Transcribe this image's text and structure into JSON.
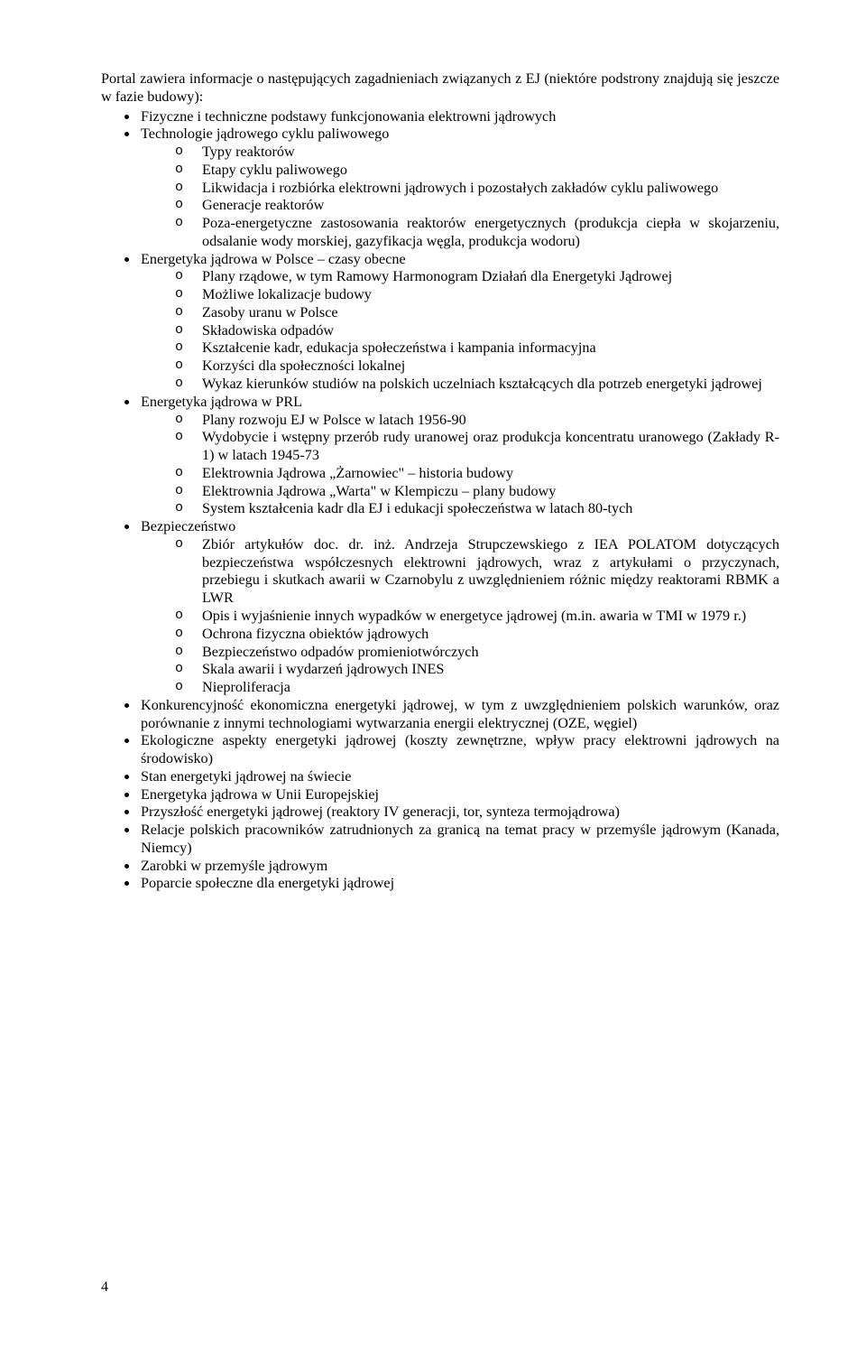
{
  "intro": "Portal zawiera informacje o następujących zagadnieniach związanych z EJ (niektóre podstrony znajdują się jeszcze w fazie budowy):",
  "page_number": "4",
  "items": [
    {
      "text": "Fizyczne i techniczne podstawy funkcjonowania elektrowni jądrowych"
    },
    {
      "text": "Technologie jądrowego cyklu paliwowego",
      "sub": [
        "Typy reaktorów",
        "Etapy cyklu paliwowego",
        "Likwidacja i rozbiórka elektrowni jądrowych i pozostałych zakładów cyklu paliwowego",
        "Generacje reaktorów",
        "Poza-energetyczne zastosowania reaktorów energetycznych (produkcja ciepła w skojarzeniu, odsalanie wody morskiej, gazyfikacja węgla, produkcja wodoru)"
      ]
    },
    {
      "text": "Energetyka jądrowa w Polsce – czasy obecne",
      "sub": [
        "Plany rządowe, w tym Ramowy Harmonogram Działań dla Energetyki Jądrowej",
        "Możliwe lokalizacje budowy",
        "Zasoby uranu w Polsce",
        "Składowiska odpadów",
        "Kształcenie kadr, edukacja społeczeństwa i kampania informacyjna",
        "Korzyści dla społeczności lokalnej",
        "Wykaz kierunków studiów na polskich uczelniach kształcących dla potrzeb energetyki jądrowej"
      ]
    },
    {
      "text": "Energetyka jądrowa w PRL",
      "sub": [
        "Plany rozwoju EJ w Polsce w latach 1956-90",
        "Wydobycie i wstępny przerób rudy uranowej oraz produkcja koncentratu uranowego (Zakłady R-1) w latach 1945-73",
        "Elektrownia Jądrowa „Żarnowiec\" – historia budowy",
        "Elektrownia Jądrowa „Warta\" w Klempiczu – plany budowy",
        "System kształcenia kadr dla EJ i edukacji społeczeństwa w latach 80-tych"
      ]
    },
    {
      "text": "Bezpieczeństwo",
      "sub": [
        "Zbiór artykułów doc. dr. inż. Andrzeja Strupczewskiego z IEA POLATOM dotyczących bezpieczeństwa współczesnych elektrowni jądrowych, wraz z artykułami o przyczynach, przebiegu i skutkach awarii w Czarnobylu z uwzględnieniem różnic między reaktorami RBMK a LWR",
        "Opis i wyjaśnienie innych wypadków w energetyce jądrowej (m.in. awaria w TMI w 1979 r.)",
        "Ochrona fizyczna obiektów jądrowych",
        "Bezpieczeństwo odpadów promieniotwórczych",
        "Skala awarii i wydarzeń jądrowych INES",
        "Nieproliferacja"
      ]
    },
    {
      "text": "Konkurencyjność ekonomiczna energetyki jądrowej, w tym z uwzględnieniem polskich warunków, oraz porównanie z innymi technologiami wytwarzania energii elektrycznej (OZE, węgiel)"
    },
    {
      "text": "Ekologiczne aspekty energetyki jądrowej (koszty zewnętrzne, wpływ pracy elektrowni jądrowych na środowisko)"
    },
    {
      "text": "Stan energetyki jądrowej na świecie"
    },
    {
      "text": "Energetyka jądrowa w Unii Europejskiej"
    },
    {
      "text": "Przyszłość energetyki jądrowej (reaktory IV generacji, tor, synteza termojądrowa)"
    },
    {
      "text": "Relacje polskich pracowników zatrudnionych za granicą na temat pracy w przemyśle jądrowym (Kanada, Niemcy)"
    },
    {
      "text": "Zarobki w przemyśle jądrowym"
    },
    {
      "text": "Poparcie społeczne dla energetyki jądrowej"
    }
  ]
}
